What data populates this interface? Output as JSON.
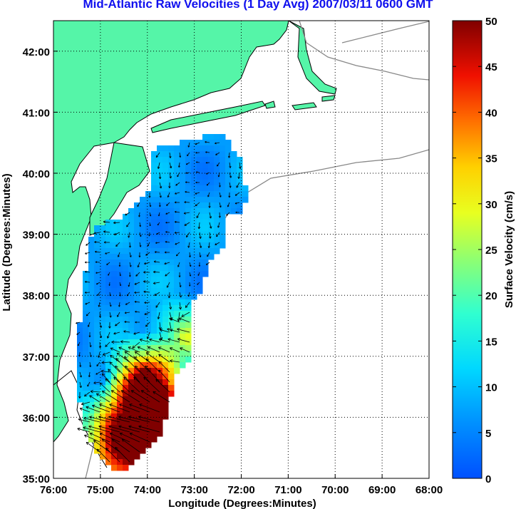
{
  "title": "Mid-Atlantic Raw Velocities (1 Day Avg) 2007/03/11 0600 GMT",
  "map": {
    "xlabel": "Longitude (Degrees:Minutes)",
    "ylabel": "Latitude (Degrees:Minutes)",
    "x_ticks": [
      "76:00",
      "75:00",
      "74:00",
      "73:00",
      "72:00",
      "71:00",
      "70:00",
      "69:00",
      "68:00"
    ],
    "y_ticks": [
      "42:00",
      "41:00",
      "40:00",
      "39:00",
      "38:00",
      "37:00",
      "36:00",
      "35:00"
    ],
    "lon_range": [
      -76,
      -68
    ],
    "lat_range": [
      35,
      42.5
    ],
    "land_color": "#55f5a8",
    "grid": "dotted"
  },
  "colorbar": {
    "label": "Surface Velocity (cm/s)",
    "ticks": [
      "50",
      "45",
      "40",
      "35",
      "30",
      "25",
      "20",
      "15",
      "10",
      "5",
      "0"
    ],
    "range": [
      0,
      50
    ],
    "colormap": "jet"
  }
}
